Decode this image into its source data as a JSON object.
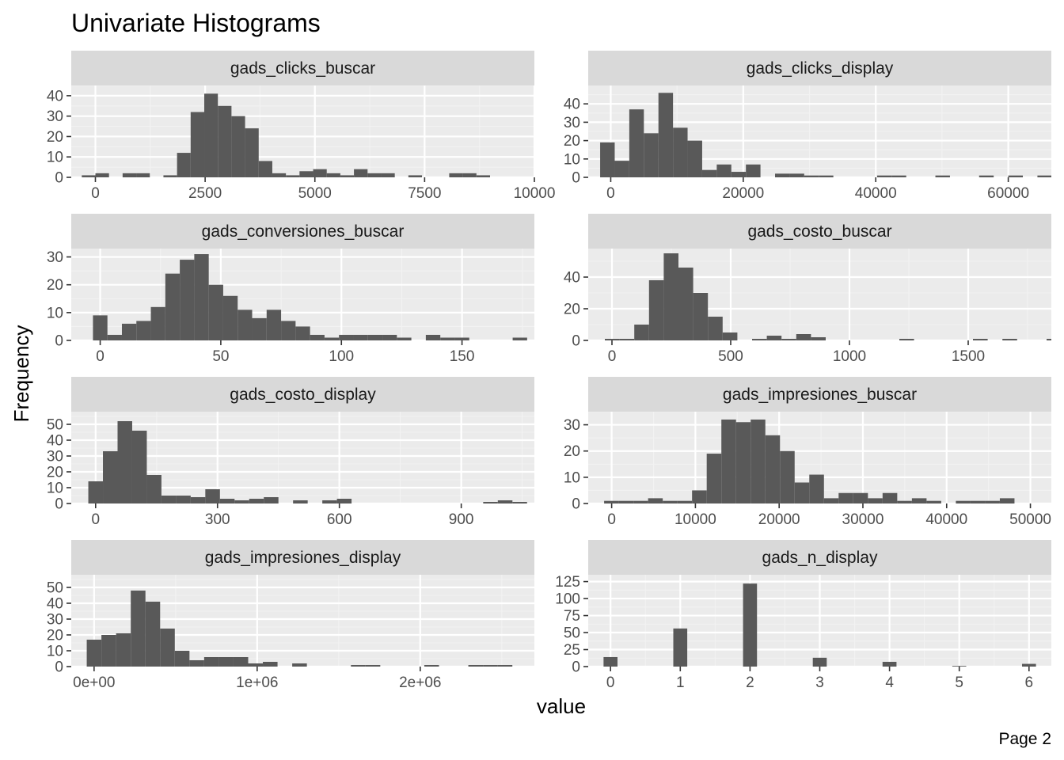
{
  "page": {
    "title": "Univariate Histograms",
    "xlabel": "value",
    "ylabel": "Frequency",
    "caption": "Page 2"
  },
  "colors": {
    "panel_background": "#ebebeb",
    "grid_major": "#ffffff",
    "grid_minor": "#f2f2f2",
    "strip_background": "#d9d9d9",
    "bar_fill": "#595959",
    "tick_color": "#333333"
  },
  "chart_data": [
    {
      "type": "bar",
      "subtype": "histogram",
      "title": "gads_clicks_buscar",
      "xlim": [
        -550,
        10000
      ],
      "ylim": [
        0,
        45
      ],
      "xticks": [
        0,
        2500,
        5000,
        7500,
        10000
      ],
      "xtick_labels": [
        "0",
        "2500",
        "5000",
        "7500",
        "10000"
      ],
      "yticks": [
        0,
        10,
        20,
        30,
        40
      ],
      "bin_start": -310,
      "bin_width": 310,
      "values": [
        1,
        2,
        0,
        2,
        2,
        0,
        1,
        12,
        32,
        41,
        35,
        30,
        24,
        8,
        2,
        1,
        3,
        4,
        2,
        1,
        4,
        2,
        2,
        0,
        1,
        0,
        0,
        2,
        2,
        1
      ]
    },
    {
      "type": "bar",
      "subtype": "histogram",
      "title": "gads_clicks_display",
      "xlim": [
        -3400,
        66500
      ],
      "ylim": [
        0,
        50
      ],
      "xticks": [
        0,
        20000,
        40000,
        60000
      ],
      "xtick_labels": [
        "0",
        "20000",
        "40000",
        "60000"
      ],
      "yticks": [
        0,
        10,
        20,
        30,
        40
      ],
      "bin_start": -1600,
      "bin_width": 2200,
      "values": [
        19,
        9,
        37,
        24,
        46,
        27,
        20,
        4,
        7,
        3,
        7,
        0,
        2,
        2,
        1,
        1,
        0,
        0,
        0,
        1,
        1,
        0,
        0,
        1,
        0,
        0,
        1,
        0,
        1,
        0,
        1
      ]
    },
    {
      "type": "bar",
      "subtype": "histogram",
      "title": "gads_conversiones_buscar",
      "xlim": [
        -12,
        180
      ],
      "ylim": [
        0,
        33
      ],
      "xticks": [
        0,
        50,
        100,
        150
      ],
      "xtick_labels": [
        "0",
        "50",
        "100",
        "150"
      ],
      "yticks": [
        0,
        10,
        20,
        30
      ],
      "bin_start": -3,
      "bin_width": 6,
      "values": [
        9,
        2,
        6,
        7,
        12,
        24,
        29,
        31,
        20,
        16,
        11,
        8,
        11,
        7,
        5,
        2,
        1,
        2,
        2,
        2,
        2,
        1,
        0,
        2,
        1,
        1,
        0,
        0,
        0,
        1
      ]
    },
    {
      "type": "bar",
      "subtype": "histogram",
      "title": "gads_costo_buscar",
      "xlim": [
        -100,
        1850
      ],
      "ylim": [
        0,
        58
      ],
      "xticks": [
        0,
        500,
        1000,
        1500
      ],
      "xtick_labels": [
        "0",
        "500",
        "1000",
        "1500"
      ],
      "yticks": [
        0,
        20,
        40
      ],
      "bin_start": -30,
      "bin_width": 62,
      "values": [
        1,
        1,
        10,
        38,
        55,
        46,
        30,
        15,
        5,
        0,
        1,
        3,
        1,
        4,
        2,
        0,
        0,
        0,
        0,
        0,
        1,
        0,
        0,
        0,
        0,
        1,
        0,
        1,
        0,
        0,
        1
      ]
    },
    {
      "type": "bar",
      "subtype": "histogram",
      "title": "gads_costo_display",
      "xlim": [
        -60,
        1080
      ],
      "ylim": [
        0,
        58
      ],
      "xticks": [
        0,
        300,
        600,
        900
      ],
      "xtick_labels": [
        "0",
        "300",
        "600",
        "900"
      ],
      "yticks": [
        0,
        10,
        20,
        30,
        40,
        50
      ],
      "bin_start": -18,
      "bin_width": 36,
      "values": [
        14,
        33,
        52,
        46,
        18,
        5,
        5,
        4,
        9,
        3,
        2,
        3,
        4,
        0,
        2,
        0,
        2,
        3,
        0,
        0,
        0,
        0,
        0,
        0,
        0,
        0,
        0,
        1,
        2,
        1
      ]
    },
    {
      "type": "bar",
      "subtype": "histogram",
      "title": "gads_impresiones_buscar",
      "xlim": [
        -2800,
        52500
      ],
      "ylim": [
        0,
        35
      ],
      "xticks": [
        0,
        10000,
        20000,
        30000,
        40000,
        50000
      ],
      "xtick_labels": [
        "0",
        "10000",
        "20000",
        "30000",
        "40000",
        "50000"
      ],
      "yticks": [
        0,
        10,
        20,
        30
      ],
      "bin_start": -900,
      "bin_width": 1750,
      "values": [
        1,
        1,
        1,
        2,
        1,
        1,
        5,
        19,
        32,
        31,
        32,
        26,
        20,
        8,
        11,
        2,
        4,
        4,
        2,
        4,
        1,
        2,
        1,
        0,
        1,
        1,
        1,
        2
      ]
    },
    {
      "type": "bar",
      "subtype": "histogram",
      "title": "gads_impresiones_display",
      "xlim": [
        -140000,
        2700000
      ],
      "ylim": [
        0,
        58
      ],
      "xticks": [
        0,
        1000000,
        2000000
      ],
      "xtick_labels": [
        "0e+00",
        "1e+06",
        "2e+06"
      ],
      "yticks": [
        0,
        10,
        20,
        30,
        40,
        50
      ],
      "bin_start": -45000,
      "bin_width": 90000,
      "values": [
        17,
        20,
        21,
        48,
        41,
        24,
        10,
        4,
        6,
        6,
        6,
        2,
        3,
        0,
        2,
        0,
        0,
        0,
        1,
        1,
        0,
        0,
        0,
        1,
        0,
        0,
        1,
        1,
        1
      ]
    },
    {
      "type": "bar",
      "subtype": "histogram",
      "title": "gads_n_display",
      "xlim": [
        -0.32,
        6.32
      ],
      "ylim": [
        0,
        135
      ],
      "xticks": [
        0,
        1,
        2,
        3,
        4,
        5,
        6
      ],
      "xtick_labels": [
        "0",
        "1",
        "2",
        "3",
        "4",
        "5",
        "6"
      ],
      "yticks": [
        0,
        25,
        50,
        75,
        100,
        125
      ],
      "bin_start": -0.1,
      "bin_width": 0.2,
      "values": [
        14,
        0,
        0,
        0,
        0,
        56,
        0,
        0,
        0,
        0,
        122,
        0,
        0,
        0,
        0,
        13,
        0,
        0,
        0,
        0,
        7,
        0,
        0,
        0,
        0,
        1,
        0,
        0,
        0,
        0,
        4
      ]
    }
  ]
}
